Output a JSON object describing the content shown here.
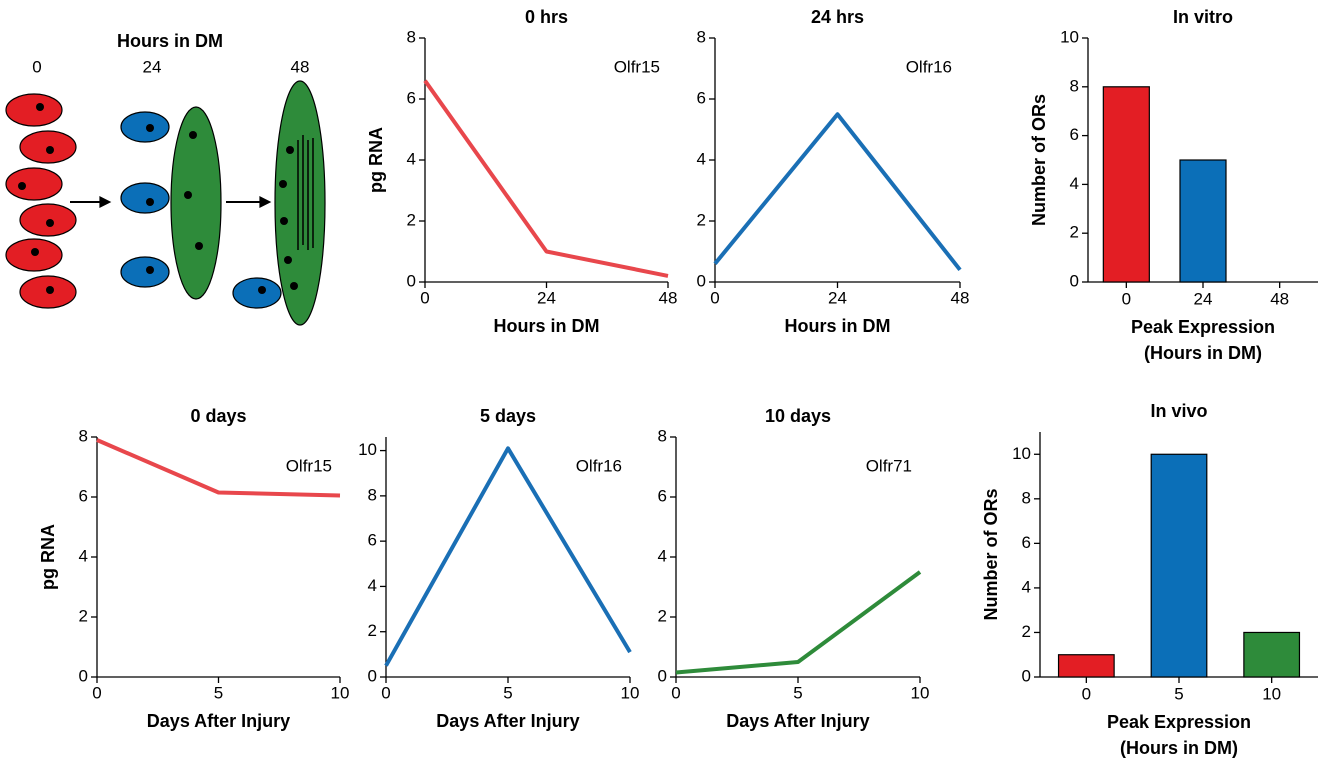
{
  "diagram": {
    "title": "Hours in DM",
    "labels": [
      "0",
      "24",
      "48"
    ]
  },
  "chart_data": [
    {
      "type": "line",
      "title": "0 hrs",
      "annotation": "Olfr15",
      "xlabel": "Hours in DM",
      "ylabel": "pg RNA",
      "color": "#e8474c",
      "x": [
        0,
        24,
        48
      ],
      "values": [
        6.6,
        1.0,
        0.2
      ],
      "xlim": [
        0,
        48
      ],
      "xticks": [
        0,
        24,
        48
      ],
      "ylim": [
        0,
        8
      ],
      "yticks": [
        0,
        2,
        4,
        6,
        8
      ]
    },
    {
      "type": "line",
      "title": "24 hrs",
      "annotation": "Olfr16",
      "xlabel": "Hours in DM",
      "color": "#1a6fb5",
      "x": [
        0,
        24,
        48
      ],
      "values": [
        0.6,
        5.5,
        0.4
      ],
      "xlim": [
        0,
        48
      ],
      "xticks": [
        0,
        24,
        48
      ],
      "ylim": [
        0,
        8
      ],
      "yticks": [
        0,
        2,
        4,
        6,
        8
      ]
    },
    {
      "type": "bar",
      "title": "In vitro",
      "xlabel": [
        "Peak Expression",
        "(Hours in DM)"
      ],
      "ylabel": "Number of ORs",
      "categories": [
        "0",
        "24",
        "48"
      ],
      "values": [
        8,
        5,
        0
      ],
      "colors": [
        "#e31e24",
        "#0b6fb8",
        "#2e8b3a"
      ],
      "ylim": [
        0,
        10
      ],
      "yticks": [
        0,
        2,
        4,
        6,
        8,
        10
      ]
    },
    {
      "type": "line",
      "title": "0 days",
      "annotation": "Olfr15",
      "xlabel": "Days After Injury",
      "ylabel": "pg RNA",
      "color": "#e8474c",
      "x": [
        0,
        5,
        10
      ],
      "values": [
        7.9,
        6.15,
        6.05
      ],
      "xlim": [
        0,
        10
      ],
      "xticks": [
        0,
        5,
        10
      ],
      "ylim": [
        0,
        8
      ],
      "yticks": [
        0,
        2,
        4,
        6,
        8
      ]
    },
    {
      "type": "line",
      "title": "5 days",
      "annotation": "Olfr16",
      "xlabel": "Days After Injury",
      "color": "#1a6fb5",
      "x": [
        0,
        5,
        10
      ],
      "values": [
        0.5,
        10.1,
        1.1
      ],
      "xlim": [
        0,
        10
      ],
      "xticks": [
        0,
        5,
        10
      ],
      "ylim": [
        0,
        10.6
      ],
      "yticks": [
        0,
        2,
        4,
        6,
        8,
        10
      ]
    },
    {
      "type": "line",
      "title": "10 days",
      "annotation": "Olfr71",
      "xlabel": "Days After Injury",
      "color": "#2e8b3a",
      "x": [
        0,
        5,
        10
      ],
      "values": [
        0.15,
        0.5,
        3.5
      ],
      "xlim": [
        0,
        10
      ],
      "xticks": [
        0,
        5,
        10
      ],
      "ylim": [
        0,
        8
      ],
      "yticks": [
        0,
        2,
        4,
        6,
        8
      ]
    },
    {
      "type": "bar",
      "title": "In vivo",
      "xlabel": [
        "Peak Expression",
        "(Hours in DM)"
      ],
      "ylabel": "Number of ORs",
      "categories": [
        "0",
        "5",
        "10"
      ],
      "values": [
        1,
        10,
        2
      ],
      "colors": [
        "#e31e24",
        "#0b6fb8",
        "#2e8b3a"
      ],
      "ylim": [
        0,
        11
      ],
      "yticks": [
        0,
        2,
        4,
        6,
        8,
        10
      ]
    }
  ]
}
